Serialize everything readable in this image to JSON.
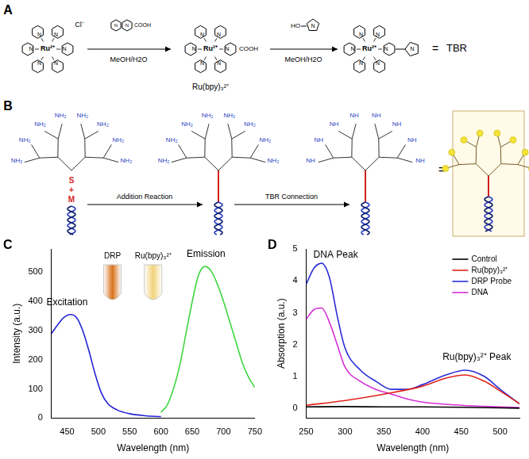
{
  "diagram": {
    "panel_a": {
      "label": "A",
      "ion": "Ru²⁺",
      "counter_ion": "Cl⁻",
      "atom": "N",
      "acid_group": "COOH",
      "hydroxyl": "HO",
      "reagent_solvents": [
        "MeOH/H2O",
        "MeOH/H2O"
      ],
      "intermediate": "Ru(bpy)₃²⁺",
      "equals": "=",
      "product": "TBR"
    },
    "panel_b": {
      "label": "B",
      "terminal_group": "NH₂",
      "connected_group": "NH",
      "linker": [
        "S",
        "+",
        "M"
      ],
      "steps": [
        "Addition Reaction",
        "TBR Connection"
      ],
      "equals": "="
    }
  },
  "chart_data": [
    {
      "panel": "C",
      "type": "line",
      "xlabel": "Wavelength (nm)",
      "ylabel": "Intensity (a.u.)",
      "xlim": [
        425,
        750
      ],
      "xticks": [
        450,
        500,
        550,
        600,
        650,
        700,
        750
      ],
      "ylim": [
        0,
        580
      ],
      "yticks": [
        0,
        100,
        200,
        300,
        400,
        500
      ],
      "grid": false,
      "series": [
        {
          "color": "#2323d6",
          "x": [
            425,
            435,
            445,
            455,
            465,
            475,
            485,
            495,
            505,
            515,
            530,
            550,
            575,
            600
          ],
          "values": [
            290,
            320,
            345,
            355,
            345,
            300,
            230,
            150,
            85,
            50,
            28,
            15,
            8,
            5
          ]
        },
        {
          "color": "#3fd63f",
          "x": [
            600,
            610,
            620,
            630,
            640,
            650,
            660,
            670,
            680,
            690,
            700,
            710,
            720,
            730,
            740,
            750
          ],
          "values": [
            20,
            45,
            100,
            180,
            290,
            400,
            490,
            520,
            505,
            460,
            400,
            330,
            260,
            190,
            140,
            105
          ]
        }
      ],
      "annotations": [
        {
          "text": "Excitation",
          "x": 450,
          "y": 395
        },
        {
          "text": "Emission",
          "x": 672,
          "y": 562
        }
      ],
      "insets": [
        {
          "label": "DRP",
          "color": "#d9721a"
        },
        {
          "label": "Ru(bpy)₃²⁺",
          "color": "#f2d27a"
        }
      ]
    },
    {
      "panel": "D",
      "type": "line",
      "xlabel": "Wavelength (nm)",
      "ylabel": "Absorption (a.u.)",
      "xlim": [
        250,
        525
      ],
      "xticks": [
        250,
        300,
        350,
        400,
        450,
        500
      ],
      "ylim": [
        -0.3,
        5
      ],
      "yticks": [
        0,
        1,
        2,
        3,
        4,
        5
      ],
      "grid": false,
      "legend": "upper right",
      "series": [
        {
          "name": "Control",
          "color": "#000000",
          "x": [
            250,
            300,
            350,
            400,
            450,
            500,
            525
          ],
          "values": [
            0.05,
            0.06,
            0.05,
            0.05,
            0.04,
            0.02,
            0.01
          ]
        },
        {
          "name": "Ru(bpy)₃²⁺",
          "color": "#e0241b",
          "x": [
            250,
            300,
            350,
            400,
            430,
            455,
            480,
            500,
            525
          ],
          "values": [
            0.1,
            0.25,
            0.45,
            0.7,
            0.95,
            1.05,
            0.85,
            0.55,
            0.15
          ]
        },
        {
          "name": "DRP Probe",
          "color": "#2b2bd8",
          "x": [
            250,
            260,
            270,
            280,
            290,
            300,
            320,
            340,
            360,
            380,
            400,
            430,
            455,
            480,
            500,
            525
          ],
          "values": [
            3.9,
            4.4,
            4.55,
            4.1,
            2.9,
            1.9,
            1.2,
            0.85,
            0.6,
            0.6,
            0.75,
            1.05,
            1.2,
            1.0,
            0.6,
            0.15
          ]
        },
        {
          "name": "DNA",
          "color": "#d62fd6",
          "x": [
            250,
            260,
            270,
            280,
            290,
            300,
            320,
            340,
            360,
            380,
            400,
            450,
            500,
            525
          ],
          "values": [
            2.8,
            3.1,
            3.15,
            2.7,
            2.0,
            1.3,
            0.85,
            0.6,
            0.45,
            0.3,
            0.2,
            0.1,
            0.05,
            0.03
          ]
        }
      ],
      "annotations": [
        {
          "text": "DNA Peak",
          "x": 288,
          "y": 4.8
        },
        {
          "text": "Ru(bpy)₃²⁺ Peak",
          "x": 470,
          "y": 1.6
        }
      ]
    }
  ]
}
